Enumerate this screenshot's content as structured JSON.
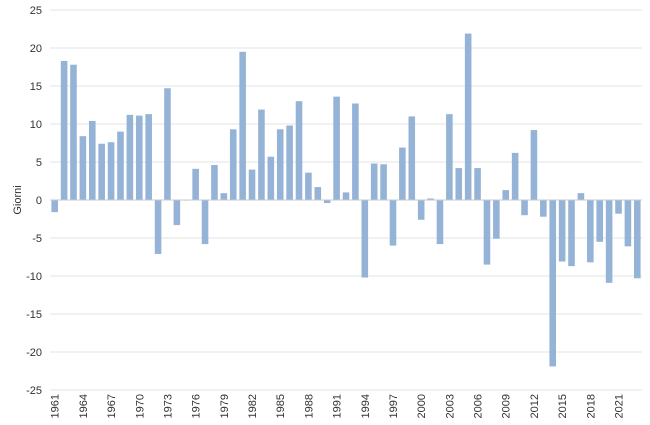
{
  "chart_data": {
    "type": "bar",
    "title": "",
    "xlabel": "",
    "ylabel": "Giorni",
    "ylim": [
      -25,
      25
    ],
    "yticks": [
      25,
      20,
      15,
      10,
      5,
      0,
      -5,
      -10,
      -15,
      -20,
      -25
    ],
    "grid": true,
    "bar_color": "#95b3d7",
    "x_tick_labels": [
      "1961",
      "1964",
      "1967",
      "1970",
      "1973",
      "1976",
      "1979",
      "1982",
      "1985",
      "1988",
      "1991",
      "1994",
      "1997",
      "2000",
      "2003",
      "2006",
      "2009",
      "2012",
      "2015",
      "2018",
      "2021"
    ],
    "categories": [
      1961,
      1962,
      1963,
      1964,
      1965,
      1966,
      1967,
      1968,
      1969,
      1970,
      1971,
      1972,
      1973,
      1974,
      1975,
      1976,
      1977,
      1978,
      1979,
      1980,
      1981,
      1982,
      1983,
      1984,
      1985,
      1986,
      1987,
      1988,
      1989,
      1990,
      1991,
      1992,
      1993,
      1994,
      1995,
      1996,
      1997,
      1998,
      1999,
      2000,
      2001,
      2002,
      2003,
      2004,
      2005,
      2006,
      2007,
      2008,
      2009,
      2010,
      2011,
      2012,
      2013,
      2014,
      2015,
      2016,
      2017,
      2018,
      2019,
      2020,
      2021,
      2022,
      2023
    ],
    "values": [
      -1.6,
      18.3,
      17.8,
      8.4,
      10.4,
      7.4,
      7.6,
      9.0,
      11.2,
      11.1,
      11.3,
      -7.1,
      14.7,
      -3.3,
      0.0,
      4.1,
      -5.8,
      4.6,
      0.9,
      9.3,
      19.5,
      4.0,
      11.9,
      5.7,
      9.3,
      9.8,
      13.0,
      3.6,
      1.7,
      -0.4,
      13.6,
      1.0,
      12.7,
      -10.2,
      4.8,
      4.7,
      -6.0,
      6.9,
      11.0,
      -2.6,
      0.2,
      -5.8,
      11.3,
      4.2,
      21.9,
      4.2,
      -8.5,
      -5.1,
      1.3,
      6.2,
      -2.0,
      9.2,
      -2.2,
      -21.9,
      -8.1,
      -8.7,
      0.9,
      -8.2,
      -5.5,
      -10.9,
      -1.8,
      -6.1,
      -10.3
    ]
  }
}
